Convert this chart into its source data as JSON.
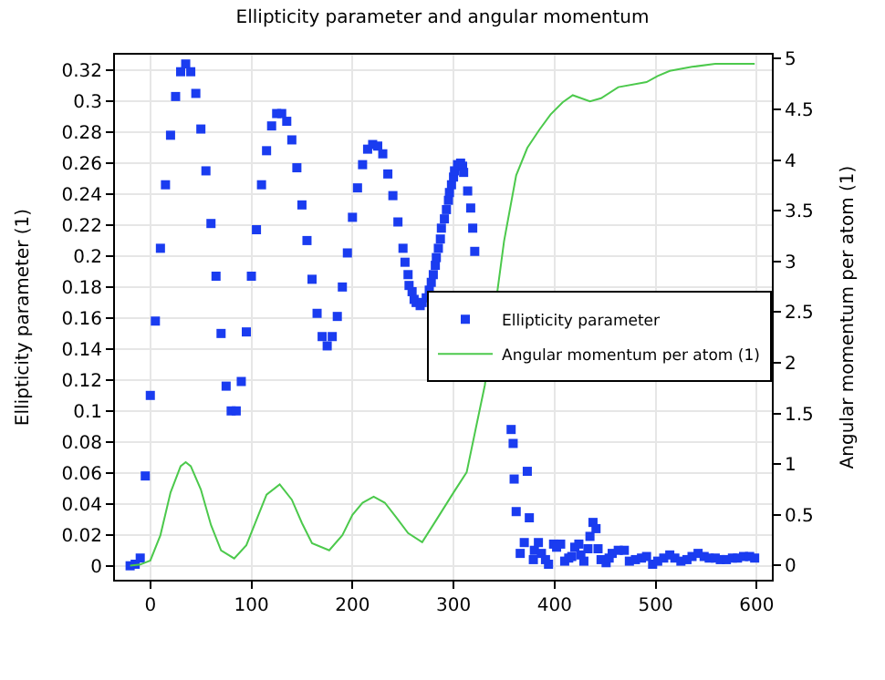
{
  "chart_data": {
    "type": "scatter",
    "title": "Ellipticity parameter and angular momentum",
    "ylabel": "Ellipticity parameter (1)",
    "y2label": "Angular momentum per atom (1)",
    "xlim": [
      -35,
      615
    ],
    "xticks": [
      0,
      100,
      200,
      300,
      400,
      500,
      600
    ],
    "ylim": [
      -0.009,
      0.33
    ],
    "yticks": [
      0,
      0.02,
      0.04,
      0.06,
      0.08,
      0.1,
      0.12,
      0.14,
      0.16,
      0.18,
      0.2,
      0.22,
      0.24,
      0.26,
      0.28,
      0.3,
      0.32
    ],
    "y2lim": [
      -0.14,
      5.04
    ],
    "y2ticks": [
      0,
      0.5,
      1,
      1.5,
      2,
      2.5,
      3,
      3.5,
      4,
      4.5,
      5
    ],
    "grid": true,
    "legend": "right",
    "series": [
      {
        "name": "Ellipticity parameter",
        "type": "scatter",
        "marker": "square",
        "color": "#1a3cf0",
        "x": [
          -20,
          -15,
          -10,
          -5,
          0,
          5,
          10,
          15,
          20,
          25,
          30,
          35,
          40,
          45,
          50,
          55,
          60,
          65,
          70,
          75,
          80,
          85,
          90,
          95,
          100,
          105,
          110,
          115,
          120,
          125,
          130,
          135,
          140,
          145,
          150,
          155,
          160,
          165,
          170,
          175,
          180,
          185,
          190,
          195,
          200,
          205,
          210,
          215,
          220,
          225,
          230,
          235,
          240,
          245,
          250,
          252,
          255,
          256,
          259,
          261,
          263,
          267,
          269,
          273,
          276,
          278,
          280,
          282,
          283,
          285,
          287,
          288,
          291,
          293,
          295,
          296,
          298,
          300,
          301,
          304,
          307,
          309,
          310,
          314,
          317,
          319,
          321,
          357,
          359,
          360,
          362,
          373,
          375,
          366,
          370,
          379,
          380,
          384,
          387,
          391,
          394,
          399,
          402,
          406,
          410,
          414,
          417,
          420,
          424,
          426,
          429,
          433,
          435,
          438,
          441,
          443,
          446,
          451,
          454,
          457,
          463,
          469,
          474,
          480,
          486,
          491,
          497,
          502,
          508,
          514,
          519,
          525,
          531,
          536,
          542,
          548,
          553,
          559,
          564,
          570,
          576,
          581,
          587,
          593,
          598
        ],
        "values": [
          0,
          0.001,
          0.005,
          0.058,
          0.11,
          0.158,
          0.205,
          0.246,
          0.278,
          0.303,
          0.319,
          0.324,
          0.319,
          0.305,
          0.282,
          0.255,
          0.221,
          0.187,
          0.15,
          0.116,
          0.1,
          0.1,
          0.119,
          0.151,
          0.187,
          0.217,
          0.246,
          0.268,
          0.284,
          0.292,
          0.292,
          0.287,
          0.275,
          0.257,
          0.233,
          0.21,
          0.185,
          0.163,
          0.148,
          0.142,
          0.148,
          0.161,
          0.18,
          0.202,
          0.225,
          0.244,
          0.259,
          0.269,
          0.272,
          0.271,
          0.266,
          0.253,
          0.239,
          0.222,
          0.205,
          0.196,
          0.188,
          0.181,
          0.177,
          0.172,
          0.17,
          0.168,
          0.17,
          0.173,
          0.178,
          0.183,
          0.188,
          0.194,
          0.199,
          0.205,
          0.211,
          0.218,
          0.224,
          0.23,
          0.236,
          0.241,
          0.246,
          0.251,
          0.255,
          0.259,
          0.26,
          0.258,
          0.254,
          0.242,
          0.231,
          0.218,
          0.203,
          0.088,
          0.079,
          0.056,
          0.035,
          0.061,
          0.031,
          0.008,
          0.015,
          0.004,
          0.01,
          0.015,
          0.008,
          0.004,
          0.001,
          0.014,
          0.012,
          0.014,
          0.003,
          0.005,
          0.006,
          0.012,
          0.014,
          0.007,
          0.003,
          0.011,
          0.019,
          0.028,
          0.024,
          0.011,
          0.004,
          0.002,
          0.005,
          0.008,
          0.01,
          0.01,
          0.003,
          0.004,
          0.005,
          0.006,
          0.001,
          0.003,
          0.005,
          0.007,
          0.005,
          0.003,
          0.004,
          0.006,
          0.008,
          0.006,
          0.005,
          0.005,
          0.004,
          0.004,
          0.005,
          0.005,
          0.006,
          0.006,
          0.005
        ]
      },
      {
        "name": "Angular momentum per atom (1)",
        "type": "line",
        "axis": "y2",
        "color": "#4cc94c",
        "x": [
          -20,
          -10,
          0,
          10,
          20,
          30,
          35,
          40,
          50,
          60,
          70,
          83,
          95,
          105,
          115,
          128,
          140,
          150,
          160,
          177,
          190,
          200,
          210,
          221,
          232,
          243,
          255,
          269,
          283,
          300,
          313,
          322,
          331,
          350,
          362,
          373,
          385,
          396,
          408,
          418,
          435,
          446,
          463,
          491,
          502,
          514,
          536,
          559,
          598
        ],
        "values": [
          0,
          0.01,
          0.05,
          0.3,
          0.72,
          0.98,
          1.02,
          0.98,
          0.75,
          0.4,
          0.15,
          0.07,
          0.2,
          0.45,
          0.7,
          0.8,
          0.65,
          0.42,
          0.22,
          0.15,
          0.3,
          0.5,
          0.62,
          0.68,
          0.62,
          0.48,
          0.32,
          0.23,
          0.45,
          0.72,
          0.92,
          1.35,
          1.78,
          3.2,
          3.85,
          4.12,
          4.3,
          4.45,
          4.57,
          4.64,
          4.58,
          4.61,
          4.72,
          4.77,
          4.83,
          4.88,
          4.92,
          4.95,
          4.95
        ]
      }
    ]
  }
}
